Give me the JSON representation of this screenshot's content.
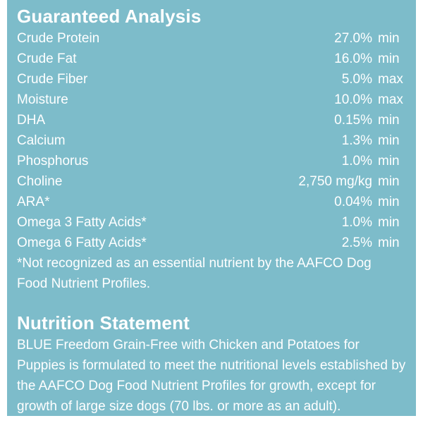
{
  "guaranteed_analysis": {
    "title": "Guaranteed Analysis",
    "rows": [
      {
        "name": "Crude Protein",
        "value": "27.0%",
        "unit": "min"
      },
      {
        "name": "Crude Fat",
        "value": "16.0%",
        "unit": "min"
      },
      {
        "name": "Crude Fiber",
        "value": "5.0%",
        "unit": "max"
      },
      {
        "name": "Moisture",
        "value": "10.0%",
        "unit": "max"
      },
      {
        "name": "DHA",
        "value": "0.15%",
        "unit": "min"
      },
      {
        "name": "Calcium",
        "value": "1.3%",
        "unit": "min"
      },
      {
        "name": "Phosphorus",
        "value": "1.0%",
        "unit": "min"
      },
      {
        "name": "Choline",
        "value": "2,750 mg/kg",
        "unit": "min"
      },
      {
        "name": "ARA*",
        "value": "0.04%",
        "unit": "min"
      },
      {
        "name": "Omega 3 Fatty Acids*",
        "value": "1.0%",
        "unit": "min"
      },
      {
        "name": "Omega 6 Fatty Acids*",
        "value": "2.5%",
        "unit": "min"
      }
    ],
    "footnote": "*Not recognized as an essential nutrient by the AAFCO Dog Food Nutrient Profiles."
  },
  "nutrition_statement": {
    "title": "Nutrition Statement",
    "text": "BLUE Freedom Grain-Free with Chicken and Potatoes for Puppies is formulated to meet the nutritional levels established by the AAFCO Dog Food Nutrient Profiles for growth, except for growth of large size dogs (70 lbs. or more as an adult)."
  },
  "colors": {
    "background": "#7dbcca",
    "text": "#ffffff"
  }
}
